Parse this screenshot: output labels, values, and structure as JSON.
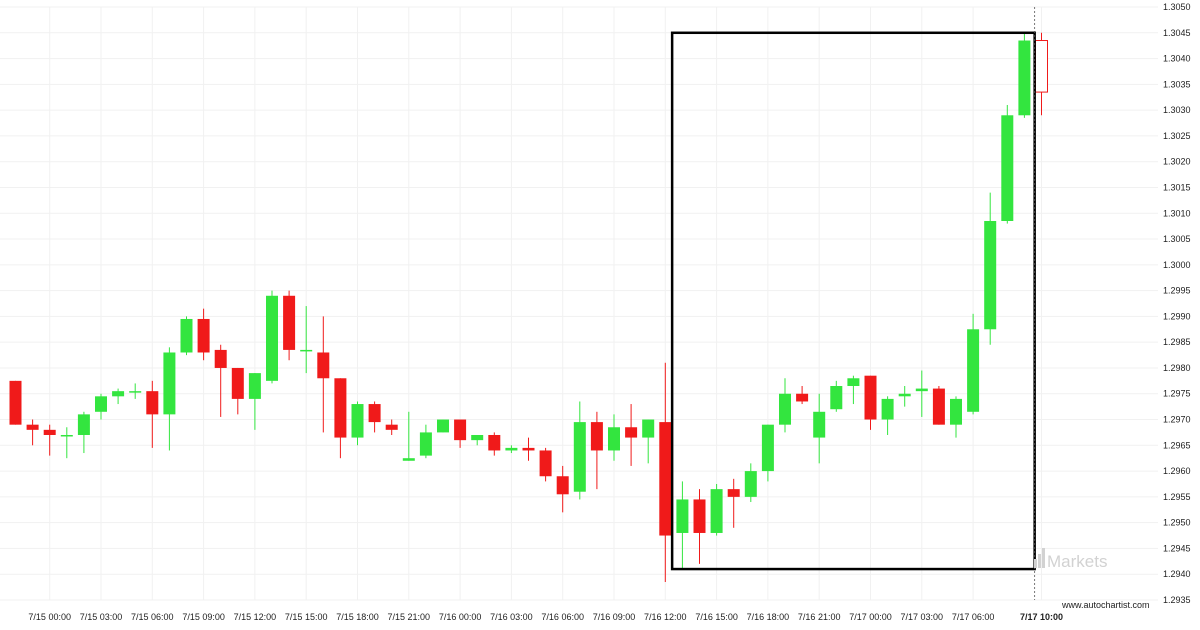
{
  "chart_data": {
    "type": "candlestick",
    "grid": true,
    "ylim": [
      1.2935,
      1.305
    ],
    "y_ticks": [
      "1.2935",
      "1.2940",
      "1.2945",
      "1.2950",
      "1.2955",
      "1.2960",
      "1.2965",
      "1.2970",
      "1.2975",
      "1.2980",
      "1.2985",
      "1.2990",
      "1.2995",
      "1.3000",
      "1.3005",
      "1.3010",
      "1.3015",
      "1.3020",
      "1.3025",
      "1.3030",
      "1.3035",
      "1.3040",
      "1.3045",
      "1.3050"
    ],
    "x_ticks": [
      {
        "label": "7/15 00:00",
        "index": 2
      },
      {
        "label": "7/15 03:00",
        "index": 5
      },
      {
        "label": "7/15 06:00",
        "index": 8
      },
      {
        "label": "7/15 09:00",
        "index": 11
      },
      {
        "label": "7/15 12:00",
        "index": 14
      },
      {
        "label": "7/15 15:00",
        "index": 17
      },
      {
        "label": "7/15 18:00",
        "index": 20
      },
      {
        "label": "7/15 21:00",
        "index": 23
      },
      {
        "label": "7/16 00:00",
        "index": 26
      },
      {
        "label": "7/16 03:00",
        "index": 29
      },
      {
        "label": "7/16 06:00",
        "index": 32
      },
      {
        "label": "7/16 09:00",
        "index": 35
      },
      {
        "label": "7/16 12:00",
        "index": 38
      },
      {
        "label": "7/16 15:00",
        "index": 41
      },
      {
        "label": "7/16 18:00",
        "index": 44
      },
      {
        "label": "7/16 21:00",
        "index": 47
      },
      {
        "label": "7/17 00:00",
        "index": 50
      },
      {
        "label": "7/17 03:00",
        "index": 53
      },
      {
        "label": "7/17 06:00",
        "index": 56
      },
      {
        "label": "7/17 10:00",
        "index": 60,
        "bold": true
      }
    ],
    "candles": [
      {
        "o": 1.29775,
        "h": 1.29775,
        "l": 1.2969,
        "c": 1.2969
      },
      {
        "o": 1.2969,
        "h": 1.297,
        "l": 1.2965,
        "c": 1.2968
      },
      {
        "o": 1.2968,
        "h": 1.2969,
        "l": 1.2963,
        "c": 1.2967
      },
      {
        "o": 1.2967,
        "h": 1.29685,
        "l": 1.29625,
        "c": 1.2967
      },
      {
        "o": 1.2967,
        "h": 1.29715,
        "l": 1.29635,
        "c": 1.2971
      },
      {
        "o": 1.29715,
        "h": 1.2975,
        "l": 1.297,
        "c": 1.29745
      },
      {
        "o": 1.29745,
        "h": 1.2976,
        "l": 1.2973,
        "c": 1.29755
      },
      {
        "o": 1.29755,
        "h": 1.2977,
        "l": 1.2974,
        "c": 1.29755
      },
      {
        "o": 1.29755,
        "h": 1.29775,
        "l": 1.29645,
        "c": 1.2971
      },
      {
        "o": 1.2971,
        "h": 1.2984,
        "l": 1.2964,
        "c": 1.2983
      },
      {
        "o": 1.2983,
        "h": 1.299,
        "l": 1.29825,
        "c": 1.29895
      },
      {
        "o": 1.29895,
        "h": 1.29915,
        "l": 1.29815,
        "c": 1.2983
      },
      {
        "o": 1.29835,
        "h": 1.29845,
        "l": 1.29705,
        "c": 1.298
      },
      {
        "o": 1.298,
        "h": 1.298,
        "l": 1.2971,
        "c": 1.2974
      },
      {
        "o": 1.2974,
        "h": 1.2979,
        "l": 1.2968,
        "c": 1.2979
      },
      {
        "o": 1.29775,
        "h": 1.2995,
        "l": 1.2977,
        "c": 1.2994
      },
      {
        "o": 1.2994,
        "h": 1.2995,
        "l": 1.29815,
        "c": 1.29835
      },
      {
        "o": 1.29835,
        "h": 1.2992,
        "l": 1.2979,
        "c": 1.29835
      },
      {
        "o": 1.2983,
        "h": 1.299,
        "l": 1.29675,
        "c": 1.2978
      },
      {
        "o": 1.2978,
        "h": 1.2978,
        "l": 1.29625,
        "c": 1.29665
      },
      {
        "o": 1.29665,
        "h": 1.29735,
        "l": 1.2965,
        "c": 1.2973
      },
      {
        "o": 1.2973,
        "h": 1.29735,
        "l": 1.29675,
        "c": 1.29695
      },
      {
        "o": 1.2969,
        "h": 1.297,
        "l": 1.2967,
        "c": 1.2968
      },
      {
        "o": 1.2962,
        "h": 1.29715,
        "l": 1.2962,
        "c": 1.29625
      },
      {
        "o": 1.2963,
        "h": 1.2969,
        "l": 1.29625,
        "c": 1.29675
      },
      {
        "o": 1.29675,
        "h": 1.297,
        "l": 1.29675,
        "c": 1.297
      },
      {
        "o": 1.297,
        "h": 1.297,
        "l": 1.29645,
        "c": 1.2966
      },
      {
        "o": 1.2966,
        "h": 1.2967,
        "l": 1.2965,
        "c": 1.2967
      },
      {
        "o": 1.2967,
        "h": 1.29675,
        "l": 1.2963,
        "c": 1.2964
      },
      {
        "o": 1.2964,
        "h": 1.2965,
        "l": 1.29635,
        "c": 1.29645
      },
      {
        "o": 1.29645,
        "h": 1.29665,
        "l": 1.2962,
        "c": 1.2964
      },
      {
        "o": 1.2964,
        "h": 1.29645,
        "l": 1.2958,
        "c": 1.2959
      },
      {
        "o": 1.2959,
        "h": 1.2961,
        "l": 1.2952,
        "c": 1.29555
      },
      {
        "o": 1.2956,
        "h": 1.29735,
        "l": 1.29545,
        "c": 1.29695
      },
      {
        "o": 1.29695,
        "h": 1.29715,
        "l": 1.29565,
        "c": 1.2964
      },
      {
        "o": 1.2964,
        "h": 1.2971,
        "l": 1.2962,
        "c": 1.29685
      },
      {
        "o": 1.29685,
        "h": 1.2973,
        "l": 1.2961,
        "c": 1.29665
      },
      {
        "o": 1.29665,
        "h": 1.297,
        "l": 1.29615,
        "c": 1.297
      },
      {
        "o": 1.29695,
        "h": 1.2981,
        "l": 1.29385,
        "c": 1.29475
      },
      {
        "o": 1.2948,
        "h": 1.2958,
        "l": 1.2941,
        "c": 1.29545
      },
      {
        "o": 1.29545,
        "h": 1.29565,
        "l": 1.2942,
        "c": 1.2948
      },
      {
        "o": 1.2948,
        "h": 1.29575,
        "l": 1.29475,
        "c": 1.29565
      },
      {
        "o": 1.29565,
        "h": 1.29585,
        "l": 1.2949,
        "c": 1.2955
      },
      {
        "o": 1.2955,
        "h": 1.29615,
        "l": 1.2954,
        "c": 1.296
      },
      {
        "o": 1.296,
        "h": 1.2969,
        "l": 1.2958,
        "c": 1.2969
      },
      {
        "o": 1.2969,
        "h": 1.2978,
        "l": 1.29675,
        "c": 1.2975
      },
      {
        "o": 1.2975,
        "h": 1.29765,
        "l": 1.2973,
        "c": 1.29735
      },
      {
        "o": 1.29665,
        "h": 1.2975,
        "l": 1.29615,
        "c": 1.29715
      },
      {
        "o": 1.2972,
        "h": 1.29775,
        "l": 1.29715,
        "c": 1.29765
      },
      {
        "o": 1.29765,
        "h": 1.29785,
        "l": 1.2973,
        "c": 1.2978
      },
      {
        "o": 1.29785,
        "h": 1.29785,
        "l": 1.2968,
        "c": 1.297
      },
      {
        "o": 1.297,
        "h": 1.29745,
        "l": 1.2967,
        "c": 1.2974
      },
      {
        "o": 1.29745,
        "h": 1.29765,
        "l": 1.29725,
        "c": 1.2975
      },
      {
        "o": 1.29755,
        "h": 1.29795,
        "l": 1.29705,
        "c": 1.2976
      },
      {
        "o": 1.2976,
        "h": 1.29765,
        "l": 1.2969,
        "c": 1.2969
      },
      {
        "o": 1.2969,
        "h": 1.29745,
        "l": 1.29665,
        "c": 1.2974
      },
      {
        "o": 1.29715,
        "h": 1.29905,
        "l": 1.2971,
        "c": 1.29875
      },
      {
        "o": 1.29875,
        "h": 1.3014,
        "l": 1.29845,
        "c": 1.30085
      },
      {
        "o": 1.30085,
        "h": 1.3031,
        "l": 1.3008,
        "c": 1.3029
      },
      {
        "o": 1.3029,
        "h": 1.3045,
        "l": 1.30285,
        "c": 1.30435
      },
      {
        "o": 1.30435,
        "h": 1.3045,
        "l": 1.3029,
        "c": 1.30335
      }
    ],
    "highlight": {
      "start_index": 38.4,
      "end_index": 59.6,
      "low": 1.2941,
      "high": 1.3045
    },
    "current_index": 59.6
  },
  "colors": {
    "bull": "#33e53f",
    "bear": "#f01a1a",
    "box": "#000000",
    "grid": "#f1f1f1",
    "watermark": "#d2d2d2"
  },
  "watermark": {
    "brand": "Markets",
    "icon": "ic-markets-logo-icon"
  },
  "site": "www.autochartist.com"
}
